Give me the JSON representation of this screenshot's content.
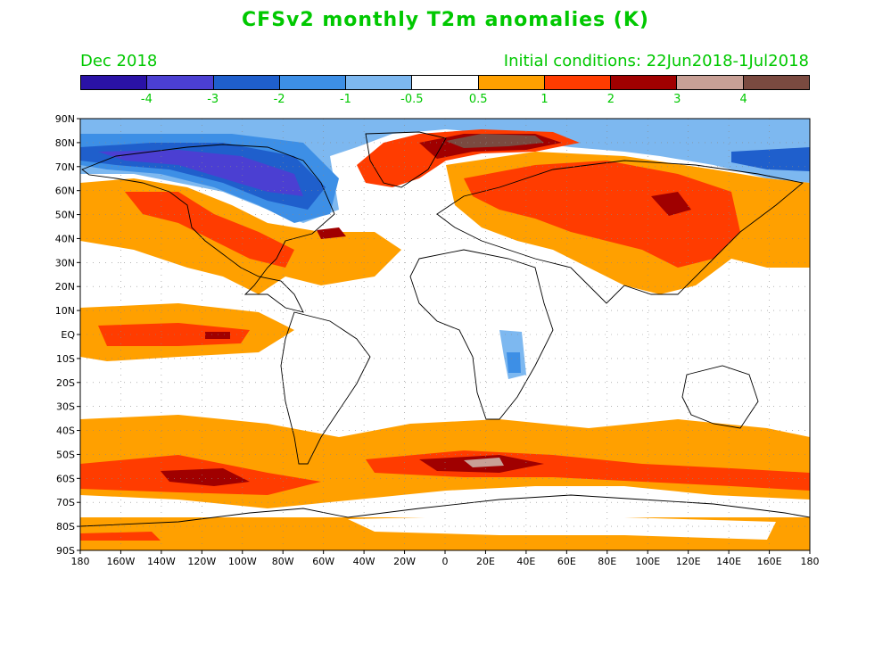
{
  "title": "CFSv2 monthly T2m anomalies (K)",
  "month": "Dec 2018",
  "initial_conditions": "Initial conditions: 22Jun2018-1Jul2018",
  "colorbar": {
    "colors": [
      "#2a12a6",
      "#4b3fd2",
      "#1f5fcc",
      "#3d8fe6",
      "#7db8f0",
      "#ffffff",
      "#ffa000",
      "#ff3c00",
      "#a00000",
      "#c8a096",
      "#7a4a40"
    ],
    "labels": [
      "-4",
      "-3",
      "-2",
      "-1",
      "-0.5",
      "0.5",
      "1",
      "2",
      "3",
      "4"
    ]
  },
  "map": {
    "lat_labels": [
      "90N",
      "80N",
      "70N",
      "60N",
      "50N",
      "40N",
      "30N",
      "20N",
      "10N",
      "EQ",
      "10S",
      "20S",
      "30S",
      "40S",
      "50S",
      "60S",
      "70S",
      "80S",
      "90S"
    ],
    "lon_labels": [
      "180",
      "160W",
      "140W",
      "120W",
      "100W",
      "80W",
      "60W",
      "40W",
      "20W",
      "0",
      "20E",
      "40E",
      "60E",
      "80E",
      "100E",
      "120E",
      "140E",
      "160E",
      "180"
    ]
  }
}
